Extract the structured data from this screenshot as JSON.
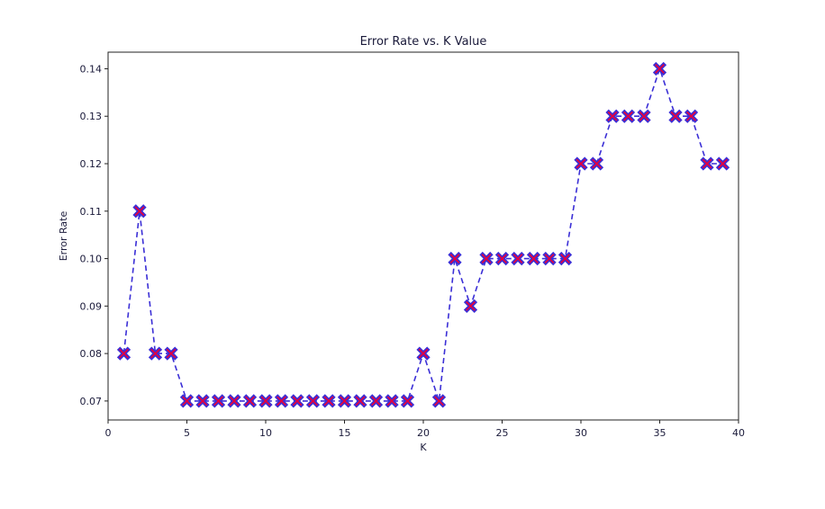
{
  "chart_data": {
    "type": "line",
    "title": "Error Rate vs. K Value",
    "xlabel": "K",
    "ylabel": "Error Rate",
    "xlim": [
      0,
      40
    ],
    "ylim": [
      0.066,
      0.1435
    ],
    "xticks": [
      0,
      5,
      10,
      15,
      20,
      25,
      30,
      35,
      40
    ],
    "xtick_labels": [
      "0",
      "5",
      "10",
      "15",
      "20",
      "25",
      "30",
      "35",
      "40"
    ],
    "yticks": [
      0.07,
      0.08,
      0.09,
      0.1,
      0.11,
      0.12,
      0.13,
      0.14
    ],
    "ytick_labels": [
      "0.07",
      "0.08",
      "0.09",
      "0.10",
      "0.11",
      "0.12",
      "0.13",
      "0.14"
    ],
    "grid": false,
    "series": [
      {
        "x": [
          1,
          2,
          3,
          4,
          5,
          6,
          7,
          8,
          9,
          10,
          11,
          12,
          13,
          14,
          15,
          16,
          17,
          18,
          19,
          20,
          21,
          22,
          23,
          24,
          25,
          26,
          27,
          28,
          29,
          30,
          31,
          32,
          33,
          34,
          35,
          36,
          37,
          38,
          39
        ],
        "values": [
          0.08,
          0.11,
          0.08,
          0.08,
          0.07,
          0.07,
          0.07,
          0.07,
          0.07,
          0.07,
          0.07,
          0.07,
          0.07,
          0.07,
          0.07,
          0.07,
          0.07,
          0.07,
          0.07,
          0.08,
          0.07,
          0.1,
          0.09,
          0.1,
          0.1,
          0.1,
          0.1,
          0.1,
          0.1,
          0.12,
          0.12,
          0.13,
          0.13,
          0.13,
          0.14,
          0.13,
          0.13,
          0.12,
          0.12
        ],
        "line_color": "#3b2fd6",
        "line_style": "dashed",
        "marker": "X",
        "marker_color": "#e8003a",
        "marker_edge_color": "#3b2fd6"
      }
    ]
  }
}
